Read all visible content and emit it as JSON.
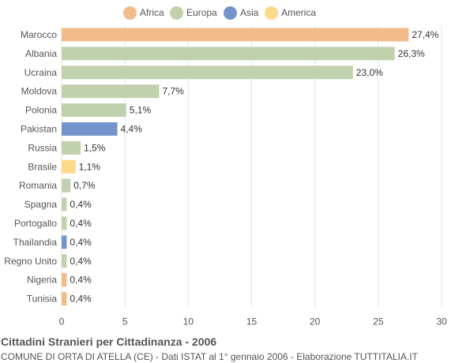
{
  "title": "Cittadini Stranieri per Cittadinanza - 2006",
  "subtitle": "COMUNE DI ORTA DI ATELLA (CE) - Dati ISTAT al 1° gennaio 2006 - Elaborazione TUTTITALIA.IT",
  "legend": [
    {
      "label": "Africa",
      "color": "#f2bc8a"
    },
    {
      "label": "Europa",
      "color": "#c0d2ad"
    },
    {
      "label": "Asia",
      "color": "#7594cc"
    },
    {
      "label": "America",
      "color": "#fdd98a"
    }
  ],
  "chart_data": {
    "type": "bar",
    "orientation": "horizontal",
    "title": "Cittadini Stranieri per Cittadinanza - 2006",
    "xlim": [
      0,
      30
    ],
    "xticks": [
      0,
      5,
      10,
      15,
      20,
      25,
      30
    ],
    "grid": true,
    "legend_position": "top",
    "categories": [
      "Marocco",
      "Albania",
      "Ucraina",
      "Moldova",
      "Polonia",
      "Pakistan",
      "Russia",
      "Brasile",
      "Romania",
      "Spagna",
      "Portogallo",
      "Thailandia",
      "Regno Unito",
      "Nigeria",
      "Tunisia"
    ],
    "values": [
      27.4,
      26.3,
      23.0,
      7.7,
      5.1,
      4.4,
      1.5,
      1.1,
      0.7,
      0.4,
      0.4,
      0.4,
      0.4,
      0.4,
      0.4
    ],
    "labels": [
      "27,4%",
      "26,3%",
      "23,0%",
      "7,7%",
      "5,1%",
      "4,4%",
      "1,5%",
      "1,1%",
      "0,7%",
      "0,4%",
      "0,4%",
      "0,4%",
      "0,4%",
      "0,4%",
      "0,4%"
    ],
    "groups": [
      "Africa",
      "Europa",
      "Europa",
      "Europa",
      "Europa",
      "Asia",
      "Europa",
      "America",
      "Europa",
      "Europa",
      "Europa",
      "Asia",
      "Europa",
      "Africa",
      "Africa"
    ]
  }
}
